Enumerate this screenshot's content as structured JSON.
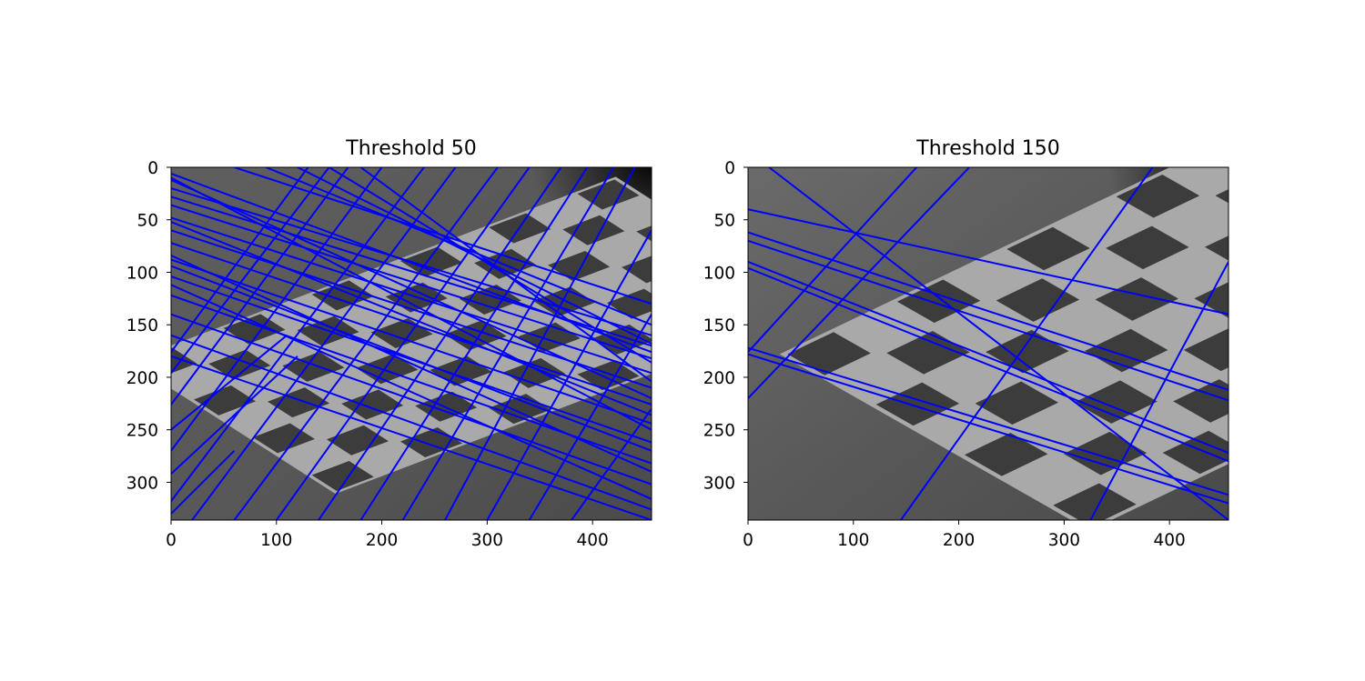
{
  "figure": {
    "background": "#ffffff",
    "line_color": "#0000ff"
  },
  "chart_data": [
    {
      "type": "image",
      "title": "Threshold 50",
      "xlim": [
        0,
        456
      ],
      "ylim": [
        336,
        0
      ],
      "xticks": [
        0,
        100,
        200,
        300,
        400
      ],
      "yticks": [
        0,
        50,
        100,
        150,
        200,
        250,
        300
      ],
      "grid": false,
      "board": {
        "origin": [
          -40,
          185
        ],
        "u": [
          42,
          -16
        ],
        "v": [
          28,
          18
        ],
        "cols": 11,
        "rows": 7
      },
      "lines": [
        [
          0,
          20,
          456,
          160
        ],
        [
          0,
          28,
          456,
          170
        ],
        [
          0,
          36,
          456,
          182
        ],
        [
          0,
          48,
          456,
          196
        ],
        [
          0,
          60,
          456,
          210
        ],
        [
          0,
          72,
          456,
          226
        ],
        [
          0,
          88,
          456,
          244
        ],
        [
          0,
          104,
          456,
          262
        ],
        [
          0,
          122,
          456,
          282
        ],
        [
          0,
          140,
          456,
          302
        ],
        [
          0,
          160,
          456,
          326
        ],
        [
          0,
          180,
          456,
          336
        ],
        [
          60,
          0,
          456,
          130
        ],
        [
          90,
          0,
          456,
          150
        ],
        [
          120,
          0,
          456,
          168
        ],
        [
          150,
          0,
          456,
          186
        ],
        [
          180,
          0,
          456,
          204
        ],
        [
          0,
          6,
          456,
          176
        ],
        [
          0,
          12,
          456,
          220
        ],
        [
          0,
          84,
          456,
          290
        ],
        [
          0,
          112,
          456,
          316
        ],
        [
          0,
          10,
          456,
          250
        ],
        [
          0,
          52,
          456,
          236
        ],
        [
          0,
          94,
          456,
          270
        ],
        [
          0,
          318,
          240,
          0
        ],
        [
          0,
          270,
          200,
          0
        ],
        [
          0,
          226,
          168,
          0
        ],
        [
          0,
          196,
          150,
          0
        ],
        [
          0,
          176,
          130,
          0
        ],
        [
          20,
          336,
          270,
          0
        ],
        [
          60,
          336,
          310,
          0
        ],
        [
          100,
          336,
          340,
          0
        ],
        [
          140,
          336,
          370,
          0
        ],
        [
          180,
          336,
          395,
          0
        ],
        [
          220,
          336,
          420,
          0
        ],
        [
          260,
          336,
          440,
          0
        ],
        [
          300,
          336,
          456,
          60
        ],
        [
          340,
          336,
          456,
          140
        ],
        [
          380,
          336,
          456,
          230
        ],
        [
          0,
          292,
          120,
          180
        ],
        [
          0,
          250,
          110,
          160
        ],
        [
          0,
          330,
          60,
          270
        ]
      ]
    },
    {
      "type": "image",
      "title": "Threshold 150",
      "xlim": [
        0,
        456
      ],
      "ylim": [
        336,
        0
      ],
      "xticks": [
        0,
        100,
        200,
        300,
        400
      ],
      "yticks": [
        0,
        50,
        100,
        150,
        200,
        250,
        300
      ],
      "grid": false,
      "board": {
        "origin": [
          30,
          178
        ],
        "u": [
          52,
          -25
        ],
        "v": [
          42,
          24
        ],
        "cols": 8,
        "rows": 7
      },
      "lines": [
        [
          0,
          40,
          456,
          140
        ],
        [
          0,
          62,
          456,
          212
        ],
        [
          0,
          70,
          456,
          222
        ],
        [
          0,
          90,
          456,
          272
        ],
        [
          0,
          96,
          456,
          280
        ],
        [
          0,
          172,
          456,
          312
        ],
        [
          0,
          178,
          456,
          320
        ],
        [
          20,
          0,
          456,
          336
        ],
        [
          0,
          220,
          210,
          0
        ],
        [
          0,
          176,
          160,
          0
        ],
        [
          145,
          336,
          384,
          0
        ],
        [
          325,
          336,
          456,
          90
        ]
      ]
    }
  ]
}
